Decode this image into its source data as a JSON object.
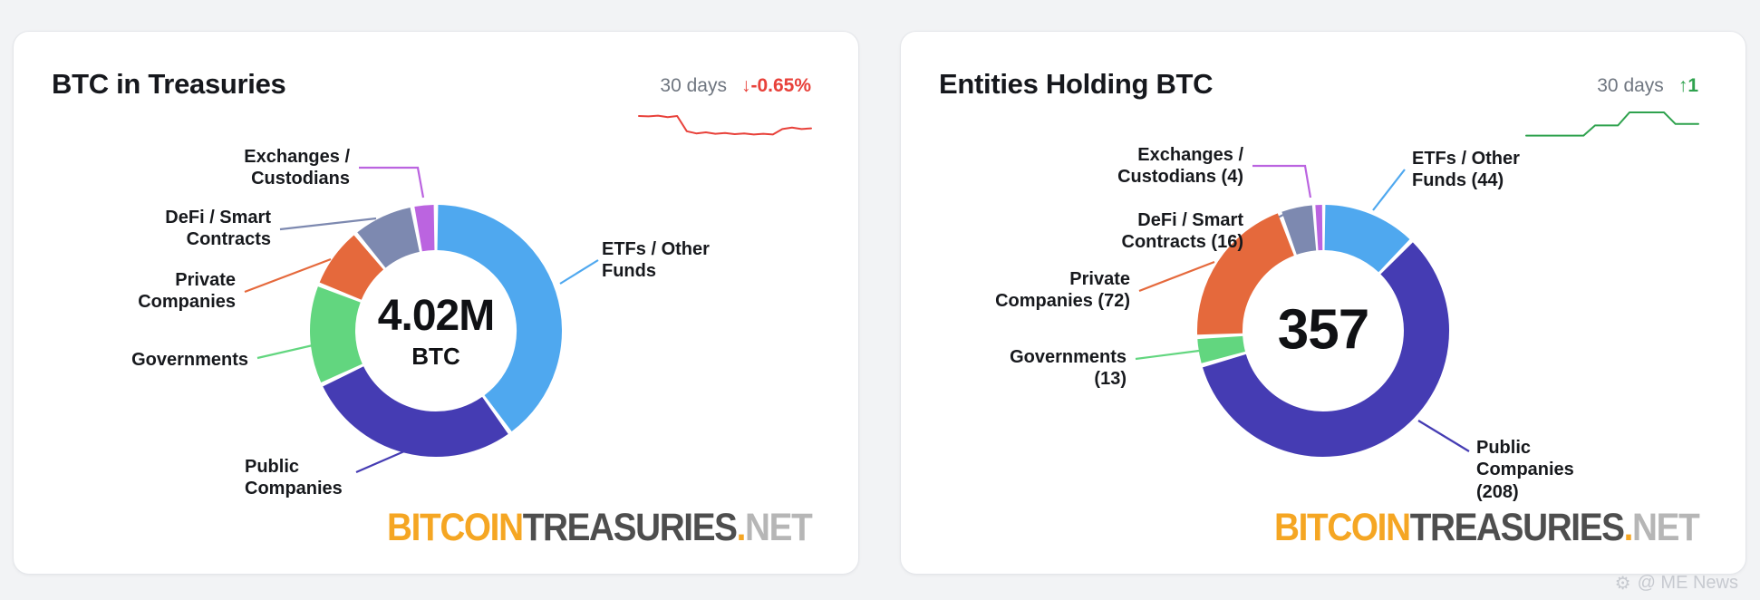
{
  "chart_data": [
    {
      "type": "pie",
      "variant": "donut",
      "title": "BTC in Treasuries",
      "center_value": "4.02M",
      "center_unit": "BTC",
      "value_format": "percent of total (estimated from arc angles)",
      "segments": [
        {
          "id": "etfs",
          "label": "ETFs / Other Funds",
          "value": 40,
          "color": "#4fa8ef"
        },
        {
          "id": "public",
          "label": "Public Companies",
          "value": 28,
          "color": "#453cb3"
        },
        {
          "id": "governments",
          "label": "Governments",
          "value": 13,
          "color": "#62d67f"
        },
        {
          "id": "private",
          "label": "Private Companies",
          "value": 8,
          "color": "#e5693c"
        },
        {
          "id": "defi",
          "label": "DeFi / Smart Contracts",
          "value": 8,
          "color": "#7d89b0"
        },
        {
          "id": "exchanges",
          "label": "Exchanges / Custodians",
          "value": 3,
          "color": "#bb64e0"
        }
      ],
      "trend_sparkline": {
        "period": "30 days",
        "change": "↓-0.65%",
        "direction": "down",
        "color": "#e8413a",
        "y_points": [
          30,
          31,
          29,
          33,
          30,
          72,
          78,
          75,
          79,
          77,
          80,
          78,
          81,
          79,
          81,
          66,
          62,
          66,
          64
        ]
      }
    },
    {
      "type": "pie",
      "variant": "donut",
      "title": "Entities Holding BTC",
      "center_value": "357",
      "center_unit": "",
      "value_format": "entity count",
      "segments": [
        {
          "id": "etfs",
          "label": "ETFs / Other Funds (44)",
          "value": 44,
          "color": "#4fa8ef"
        },
        {
          "id": "public",
          "label": "Public Companies (208)",
          "value": 208,
          "color": "#453cb3"
        },
        {
          "id": "governments",
          "label": "Governments (13)",
          "value": 13,
          "color": "#62d67f"
        },
        {
          "id": "private",
          "label": "Private Companies (72)",
          "value": 72,
          "color": "#e5693c"
        },
        {
          "id": "defi",
          "label": "DeFi / Smart Contracts (16)",
          "value": 16,
          "color": "#7d89b0"
        },
        {
          "id": "exchanges",
          "label": "Exchanges / Custodians (4)",
          "value": 4,
          "color": "#bb64e0"
        }
      ],
      "trend_sparkline": {
        "period": "30 days",
        "change": "↑1",
        "direction": "up",
        "color": "#2fa24e",
        "y_points": [
          84,
          84,
          84,
          84,
          84,
          84,
          56,
          56,
          56,
          20,
          20,
          20,
          20,
          52,
          52,
          52
        ]
      }
    }
  ],
  "cards": {
    "left": {
      "labels": {
        "exchanges": "Exchanges /\nCustodians",
        "defi": "DeFi / Smart\nContracts",
        "private": "Private\nCompanies",
        "governments": "Governments",
        "public": "Public\nCompanies",
        "etfs": "ETFs / Other\nFunds"
      }
    },
    "right": {
      "labels": {
        "exchanges": "Exchanges /\nCustodians (4)",
        "defi": "DeFi / Smart\nContracts (16)",
        "private": "Private\nCompanies (72)",
        "governments": "Governments\n(13)",
        "public": "Public\nCompanies\n(208)",
        "etfs": "ETFs / Other\nFunds (44)"
      }
    }
  },
  "logo": {
    "part1": "BITCOIN",
    "part2": "TREASURIES",
    "part3": ".",
    "part4": "NET"
  },
  "watermark": {
    "text": "@ ME News"
  }
}
